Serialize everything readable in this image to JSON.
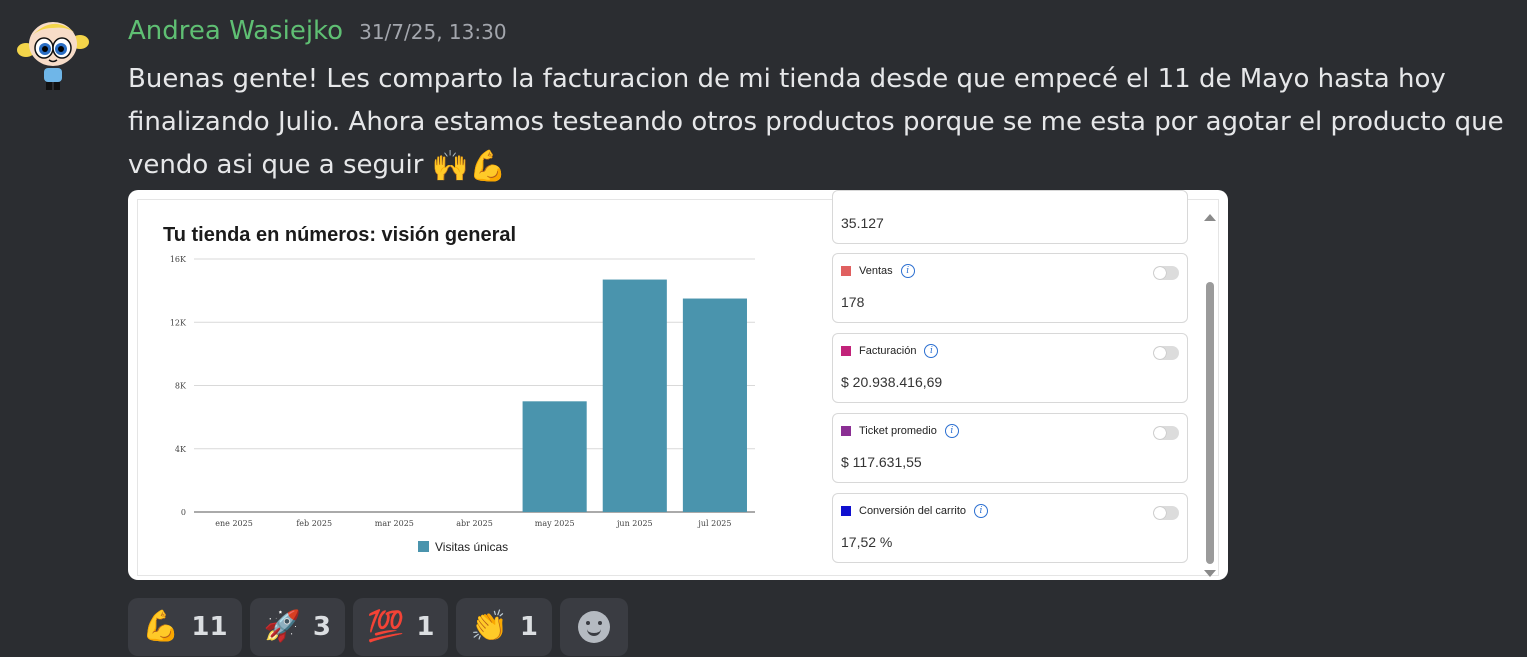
{
  "message": {
    "author": "Andrea Wasiejko",
    "timestamp": "31/7/25, 13:30",
    "text": "Buenas gente! Les comparto la facturacion de mi tienda desde que empecé el 11 de Mayo hasta hoy finalizando Julio. Ahora estamos testeando otros productos porque se me esta por agotar el producto que vendo asi que a seguir",
    "text_emojis": "🙌💪"
  },
  "attachment": {
    "chart_title": "Tu tienda en números: visión general",
    "stats": [
      {
        "label": "",
        "value": "35.127",
        "color": "",
        "partial": true
      },
      {
        "label": "Ventas",
        "value": "178",
        "color": "#e06060"
      },
      {
        "label": "Facturación",
        "value": "$ 20.938.416,69",
        "color": "#c2237a"
      },
      {
        "label": "Ticket promedio",
        "value": "$ 117.631,55",
        "color": "#8b2f94"
      },
      {
        "label": "Conversión del carrito",
        "value": "17,52 %",
        "color": "#1010d0"
      }
    ]
  },
  "chart_data": {
    "type": "bar",
    "title": "Tu tienda en números: visión general",
    "categories": [
      "ene 2025",
      "feb 2025",
      "mar 2025",
      "abr 2025",
      "may 2025",
      "jun 2025",
      "jul 2025"
    ],
    "series": [
      {
        "name": "Visitas únicas",
        "values": [
          0,
          0,
          0,
          0,
          7000,
          14700,
          13500
        ],
        "color": "#4a94ad"
      }
    ],
    "ylim": [
      0,
      16000
    ],
    "yticks": [
      "0",
      "4K",
      "8K",
      "12K",
      "16K"
    ],
    "ytick_values": [
      0,
      4000,
      8000,
      12000,
      16000
    ],
    "grid": true,
    "legend_position": "bottom"
  },
  "reactions": [
    {
      "emoji": "💪",
      "count": "11"
    },
    {
      "emoji": "🚀",
      "count": "3"
    },
    {
      "emoji": "💯",
      "count": "1"
    },
    {
      "emoji": "👏",
      "count": "1"
    }
  ]
}
